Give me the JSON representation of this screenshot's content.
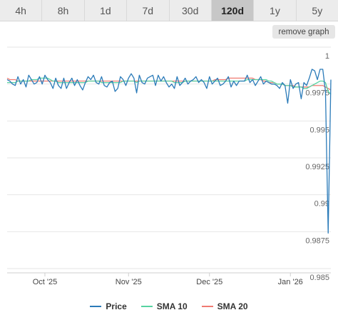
{
  "range_tabs": [
    {
      "label": "4h",
      "active": false
    },
    {
      "label": "8h",
      "active": false
    },
    {
      "label": "1d",
      "active": false
    },
    {
      "label": "7d",
      "active": false
    },
    {
      "label": "30d",
      "active": false
    },
    {
      "label": "120d",
      "active": true
    },
    {
      "label": "1y",
      "active": false
    },
    {
      "label": "5y",
      "active": false
    }
  ],
  "remove_graph_label": "remove graph",
  "colors": {
    "price": "#2b7bb9",
    "sma10": "#57d3a1",
    "sma20": "#f07b72",
    "grid": "#e6e6e6",
    "axis_text": "#666666"
  },
  "chart_data": {
    "type": "line",
    "ylim": [
      0.985,
      1.0
    ],
    "y_ticks": [
      "1",
      "0.9975",
      "0.995",
      "0.9925",
      "0.99",
      "0.9875",
      "0.985"
    ],
    "y_tick_values": [
      1.0,
      0.9975,
      0.995,
      0.9925,
      0.99,
      0.9875,
      0.985
    ],
    "x_ticks": [
      "Oct '25",
      "Nov '25",
      "Dec '25",
      "Jan '26"
    ],
    "x_tick_index": [
      14,
      45,
      75,
      105
    ],
    "series": [
      {
        "name": "Price",
        "values": [
          0.9978,
          0.9977,
          0.9975,
          0.9974,
          0.998,
          0.9975,
          0.9978,
          0.9973,
          0.9981,
          0.9978,
          0.9975,
          0.9976,
          0.998,
          0.9975,
          0.9981,
          0.9978,
          0.9976,
          0.9972,
          0.9979,
          0.9974,
          0.9972,
          0.9979,
          0.9972,
          0.9976,
          0.9979,
          0.9974,
          0.9978,
          0.9974,
          0.9971,
          0.9976,
          0.998,
          0.9978,
          0.9981,
          0.9976,
          0.9975,
          0.998,
          0.9974,
          0.9973,
          0.9976,
          0.9977,
          0.997,
          0.9972,
          0.998,
          0.9978,
          0.9974,
          0.9979,
          0.9982,
          0.9979,
          0.9969,
          0.9981,
          0.9976,
          0.9975,
          0.9979,
          0.998,
          0.9981,
          0.9974,
          0.9981,
          0.9977,
          0.998,
          0.9976,
          0.9973,
          0.9975,
          0.9972,
          0.998,
          0.9974,
          0.9976,
          0.9979,
          0.9975,
          0.9977,
          0.9978,
          0.998,
          0.9976,
          0.9978,
          0.9976,
          0.9972,
          0.998,
          0.9975,
          0.9977,
          0.9979,
          0.9974,
          0.9975,
          0.9977,
          0.998,
          0.9973,
          0.9977,
          0.9974,
          0.9977,
          0.9977,
          0.9977,
          0.9981,
          0.9976,
          0.9978,
          0.9974,
          0.9977,
          0.998,
          0.9975,
          0.9977,
          0.9976,
          0.9975,
          0.9975,
          0.9974,
          0.9972,
          0.9976,
          0.9974,
          0.9962,
          0.9978,
          0.9972,
          0.9975,
          0.9976,
          0.9965,
          0.9976,
          0.9974,
          0.9979,
          0.9985,
          0.9984,
          0.9978,
          0.9985,
          0.9985,
          0.997,
          0.9874,
          0.9978
        ]
      },
      {
        "name": "SMA 10",
        "values": [
          0.9976,
          0.9976,
          0.9976,
          0.9976,
          0.9977,
          0.9977,
          0.9977,
          0.9977,
          0.9977,
          0.9978,
          0.9978,
          0.9978,
          0.9979,
          0.9979,
          0.9979,
          0.9979,
          0.9978,
          0.9977,
          0.9977,
          0.9976,
          0.9976,
          0.9976,
          0.9976,
          0.9976,
          0.9976,
          0.9976,
          0.9976,
          0.9976,
          0.9976,
          0.9976,
          0.9977,
          0.9977,
          0.9977,
          0.9977,
          0.9977,
          0.9976,
          0.9976,
          0.9976,
          0.9976,
          0.9976,
          0.9976,
          0.9976,
          0.9976,
          0.9977,
          0.9977,
          0.9977,
          0.9977,
          0.9977,
          0.9976,
          0.9977,
          0.9977,
          0.9977,
          0.9977,
          0.9977,
          0.9977,
          0.9977,
          0.9977,
          0.9977,
          0.9977,
          0.9977,
          0.9977,
          0.9977,
          0.9976,
          0.9976,
          0.9976,
          0.9976,
          0.9977,
          0.9977,
          0.9977,
          0.9977,
          0.9977,
          0.9977,
          0.9977,
          0.9977,
          0.9977,
          0.9977,
          0.9977,
          0.9977,
          0.9977,
          0.9977,
          0.9977,
          0.9977,
          0.9977,
          0.9977,
          0.9977,
          0.9977,
          0.9977,
          0.9977,
          0.9977,
          0.9978,
          0.9978,
          0.9978,
          0.9978,
          0.9978,
          0.9978,
          0.9978,
          0.9978,
          0.9977,
          0.9977,
          0.9976,
          0.9975,
          0.9975,
          0.9975,
          0.9974,
          0.9974,
          0.9974,
          0.9973,
          0.9973,
          0.9973,
          0.9973,
          0.9972,
          0.9972,
          0.9973,
          0.9974,
          0.9975,
          0.9976,
          0.9977,
          0.9977,
          0.9976,
          0.997,
          0.9968
        ]
      },
      {
        "name": "SMA 20",
        "values": [
          0.9979,
          0.9978,
          0.9978,
          0.9978,
          0.9977,
          0.9977,
          0.9977,
          0.9977,
          0.9977,
          0.9977,
          0.9977,
          0.9977,
          0.9977,
          0.9977,
          0.9977,
          0.9977,
          0.9977,
          0.9977,
          0.9977,
          0.9977,
          0.9977,
          0.9977,
          0.9977,
          0.9977,
          0.9977,
          0.9977,
          0.9977,
          0.9977,
          0.9977,
          0.9977,
          0.9977,
          0.9977,
          0.9977,
          0.9977,
          0.9977,
          0.9977,
          0.9977,
          0.9977,
          0.9977,
          0.9977,
          0.9977,
          0.9977,
          0.9977,
          0.9977,
          0.9977,
          0.9977,
          0.9977,
          0.9977,
          0.9977,
          0.9977,
          0.9977,
          0.9977,
          0.9977,
          0.9977,
          0.9977,
          0.9977,
          0.9977,
          0.9977,
          0.9977,
          0.9977,
          0.9977,
          0.9977,
          0.9977,
          0.9977,
          0.9977,
          0.9977,
          0.9977,
          0.9977,
          0.9977,
          0.9977,
          0.9977,
          0.9977,
          0.9977,
          0.9977,
          0.9977,
          0.9977,
          0.9977,
          0.9978,
          0.9978,
          0.9978,
          0.9978,
          0.9978,
          0.9979,
          0.9979,
          0.9979,
          0.9979,
          0.9979,
          0.9979,
          0.9979,
          0.9979,
          0.9979,
          0.9979,
          0.9978,
          0.9978,
          0.9978,
          0.9977,
          0.9977,
          0.9976,
          0.9976,
          0.9976,
          0.9975,
          0.9975,
          0.9975,
          0.9974,
          0.9974,
          0.9974,
          0.9974,
          0.9973,
          0.9973,
          0.9973,
          0.9973,
          0.9973,
          0.9973,
          0.9974,
          0.9974,
          0.9974,
          0.9974,
          0.9974,
          0.9973,
          0.9972,
          0.9971
        ]
      }
    ],
    "legend_position": "bottom",
    "grid": true
  }
}
